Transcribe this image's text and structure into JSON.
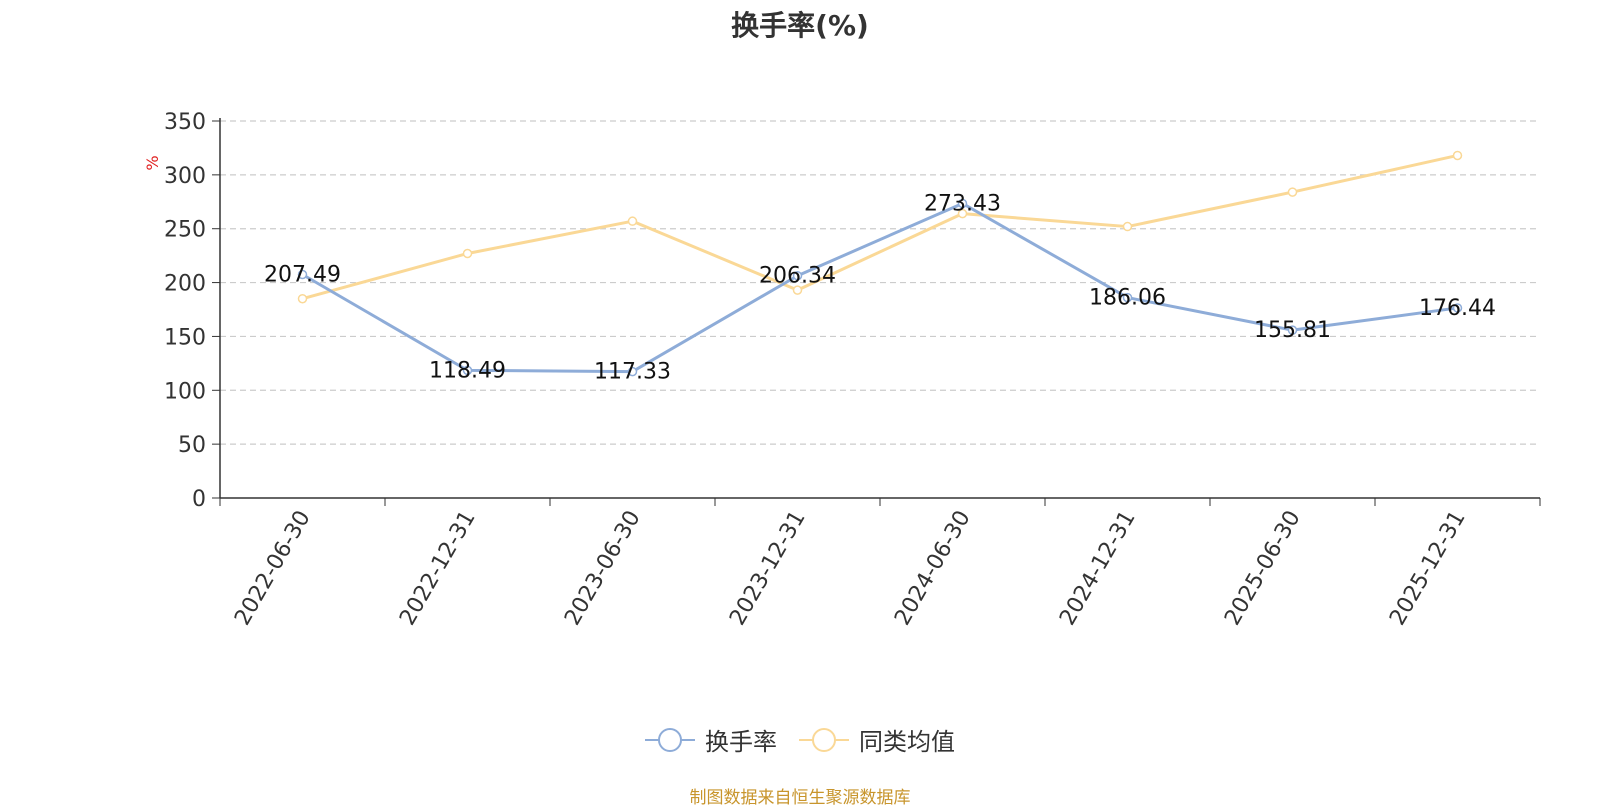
{
  "chart_data": {
    "type": "line",
    "title": "换手率(%)",
    "ylabel": "%",
    "ylim": [
      0,
      350
    ],
    "yticks": [
      0,
      50,
      100,
      150,
      200,
      250,
      300,
      350
    ],
    "grid": true,
    "legend_position": "bottom-center",
    "categories": [
      "2022-06-30",
      "2022-12-31",
      "2023-06-30",
      "2023-12-31",
      "2024-06-30",
      "2024-12-31",
      "2025-06-30",
      "2025-12-31"
    ],
    "series": [
      {
        "name": "换手率",
        "color": "#8eacd8",
        "values": [
          207.49,
          118.49,
          117.33,
          206.34,
          273.43,
          186.06,
          155.81,
          176.44
        ],
        "labels": [
          "207.49",
          "118.49",
          "117.33",
          "206.34",
          "273.43",
          "186.06",
          "155.81",
          "176.44"
        ]
      },
      {
        "name": "同类均值",
        "color": "#fad896",
        "values": [
          185,
          227,
          257,
          193,
          264,
          252,
          284,
          318
        ]
      }
    ]
  },
  "source_note": "制图数据来自恒生聚源数据库"
}
